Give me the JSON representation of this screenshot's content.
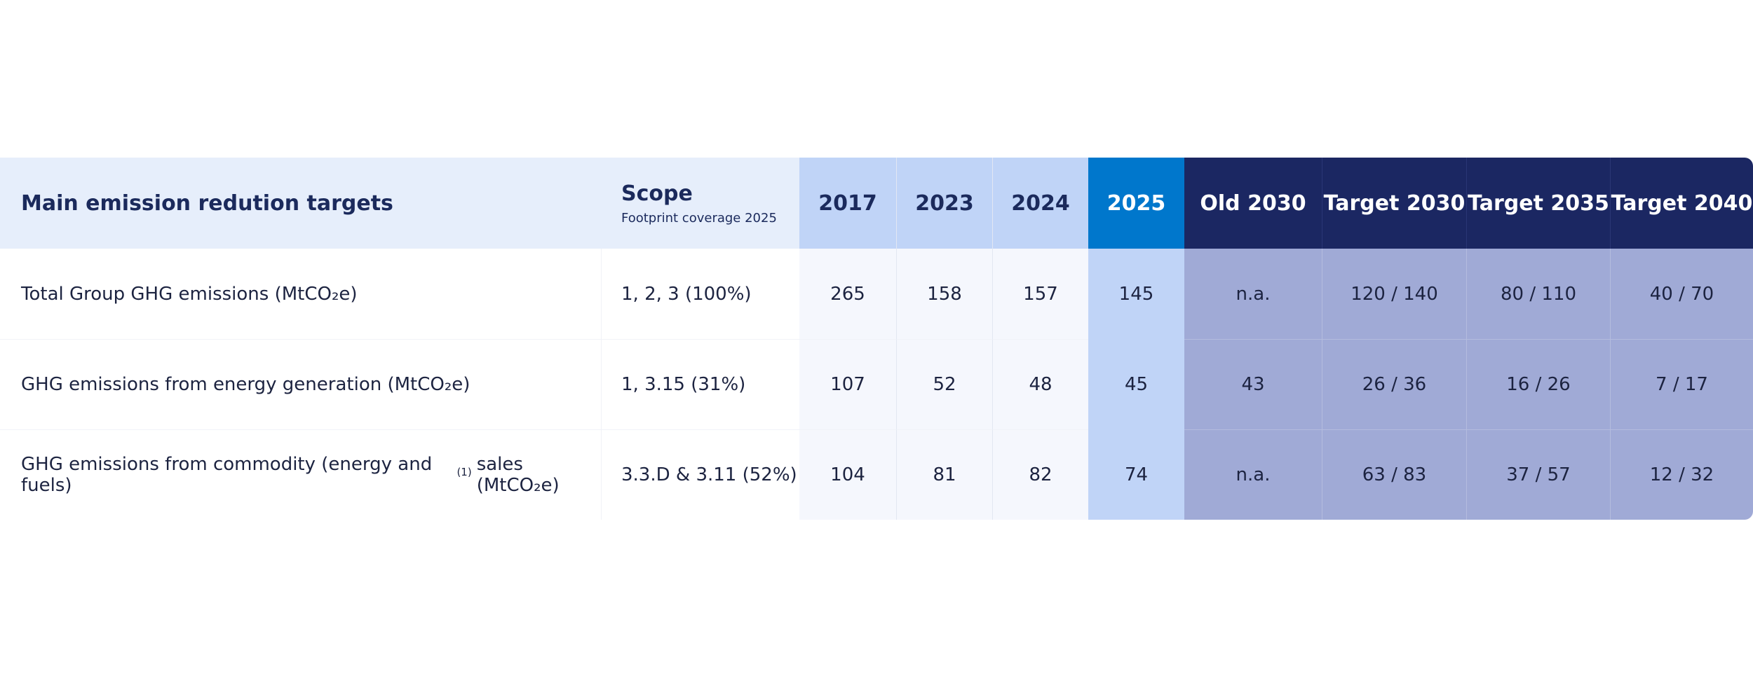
{
  "header": {
    "main": "Main emission redution targets",
    "scope_title": "Scope",
    "scope_sub": "Footprint coverage 2025",
    "years": [
      "2017",
      "2023",
      "2024",
      "2025",
      "Old 2030",
      "Target 2030",
      "Target 2035",
      "Target 2040"
    ]
  },
  "rows": [
    {
      "label_pre": "Total Group GHG emissions (MtCO₂e)",
      "label_sup": "",
      "label_post": "",
      "scope": "1, 2, 3 (100%)",
      "values": [
        "265",
        "158",
        "157",
        "145",
        "n.a.",
        "120 / 140",
        "80 / 110",
        "40 / 70"
      ]
    },
    {
      "label_pre": "GHG emissions from energy generation (MtCO₂e)",
      "label_sup": "",
      "label_post": "",
      "scope": "1, 3.15 (31%)",
      "values": [
        "107",
        "52",
        "48",
        "45",
        "43",
        "26 / 36",
        "16 / 26",
        "7 / 17"
      ]
    },
    {
      "label_pre": "GHG emissions from commodity (energy and fuels)",
      "label_sup": "(1)",
      "label_post": "sales (MtCO₂e)",
      "scope": "3.3.D & 3.11 (52%)",
      "values": [
        "104",
        "81",
        "82",
        "74",
        "n.a.",
        "63 / 83",
        "37 / 57",
        "12 / 32"
      ]
    }
  ],
  "colors": {
    "header_light": "#e6eefb",
    "header_years": "#c0d4f7",
    "header_2025": "#0077cc",
    "header_targets": "#1b2762",
    "body_years": "#f5f7fd",
    "body_2025": "#c0d4f7",
    "body_targets": "#a0aad6"
  }
}
